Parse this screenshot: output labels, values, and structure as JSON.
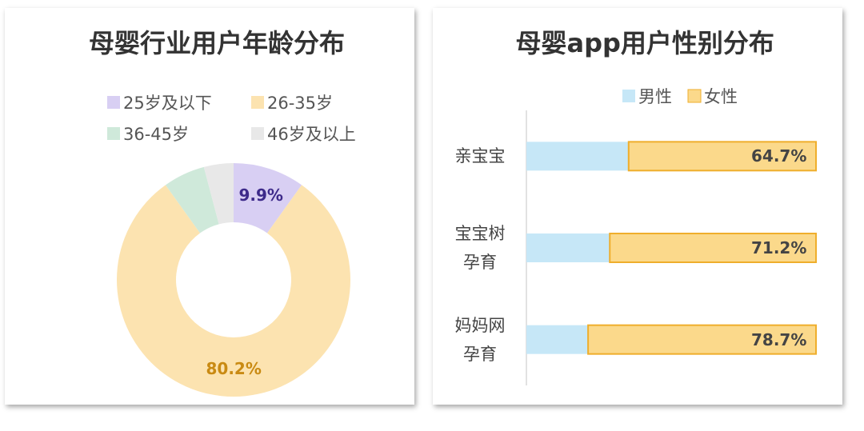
{
  "chart_data": [
    {
      "type": "donut",
      "title": "母婴行业用户年龄分布",
      "categories": [
        "25岁及以下",
        "26-35岁",
        "36-45岁",
        "46岁及以上"
      ],
      "values": [
        9.9,
        80.2,
        5.8,
        4.1
      ],
      "value_labels": [
        "9.9%",
        "80.2%",
        null,
        null
      ],
      "colors": [
        "#d8cff3",
        "#fce3b0",
        "#cfe9da",
        "#e8e8e8"
      ],
      "label_colors": [
        "#3d2a8a",
        "#c98a12",
        null,
        null
      ]
    },
    {
      "type": "stacked-bar-horizontal",
      "title": "母婴app用户性别分布",
      "categories": [
        "亲宝宝",
        "宝宝树孕育",
        "妈妈网孕育"
      ],
      "xlim": [
        0,
        100
      ],
      "series": [
        {
          "name": "男性",
          "color": "#c6e7f7",
          "values": [
            35.3,
            28.8,
            21.3
          ]
        },
        {
          "name": "女性",
          "color": "#fbd98b",
          "border": "#efae2c",
          "values": [
            64.7,
            71.2,
            78.7
          ],
          "value_labels": [
            "64.7%",
            "71.2%",
            "78.7%"
          ]
        }
      ]
    }
  ]
}
